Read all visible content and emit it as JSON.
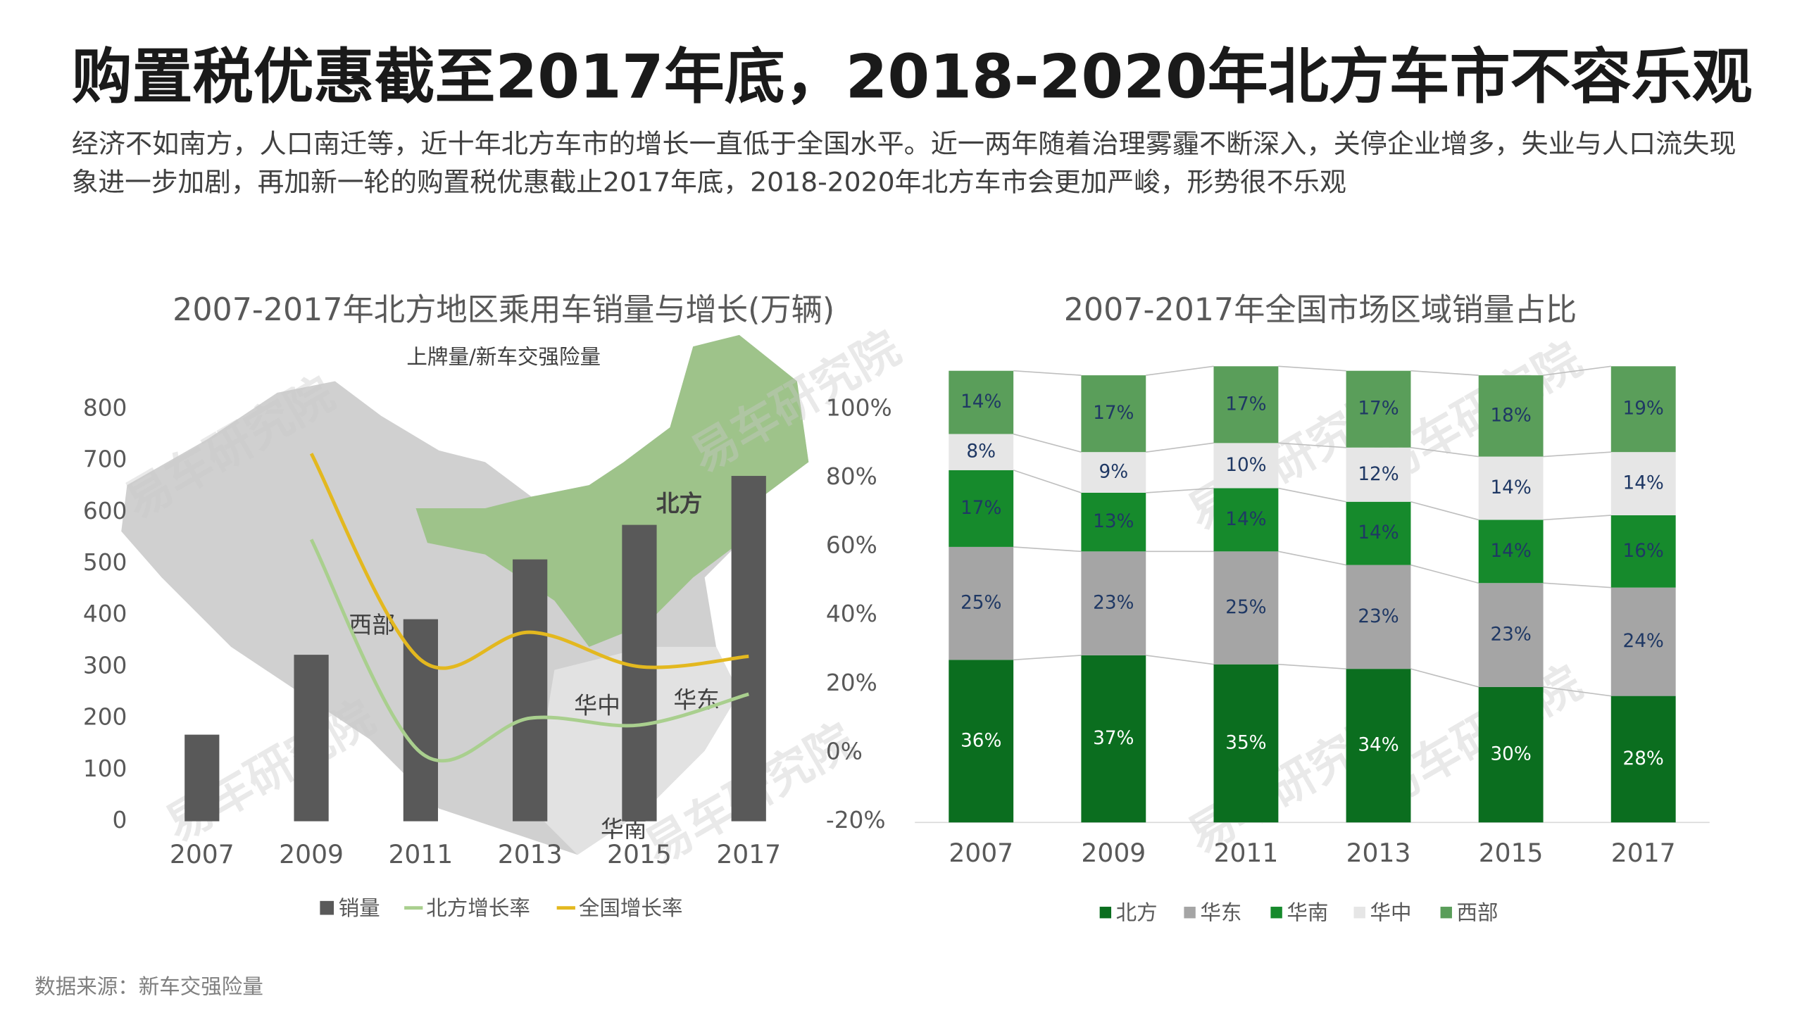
{
  "page": {
    "title": "购置税优惠截至2017年底，2018-2020年北方车市不容乐观",
    "subtitle": [
      "经济不如南方，人口南迁等，近十年北方车市的增长一直低于全国水平。近一两年随着治理雾霾不断深入，关停企业增多，失业与人口流失现",
      "象进一步加剧，再加新一轮的购置税优惠截止2017年底，2018-2020年北方车市会更加严峻，形势很不乐观"
    ],
    "source": "数据来源：新车交强险量",
    "watermark": "易车研究院"
  },
  "chart_data": [
    {
      "type": "combo",
      "title": "2007-2017年北方地区乘用车销量与增长(万辆)",
      "annotation": "上牌量/新车交强险量",
      "map_labels": [
        "北方",
        "西部",
        "华中",
        "华东",
        "华南"
      ],
      "categories": [
        "2007",
        "2009",
        "2011",
        "2013",
        "2015",
        "2017"
      ],
      "series": [
        {
          "name": "销量",
          "type": "bar",
          "color": "#595959",
          "values": [
            168,
            323,
            392,
            508,
            575,
            670
          ]
        },
        {
          "name": "北方增长率",
          "type": "line",
          "axis": "y2",
          "color": "#a9cf8e",
          "values": [
            null,
            62,
            0,
            10,
            8,
            17
          ]
        },
        {
          "name": "全国增长率",
          "type": "line",
          "axis": "y2",
          "color": "#e3b81f",
          "values": [
            null,
            87,
            27,
            35,
            25,
            28
          ]
        }
      ],
      "ylim": [
        0,
        800
      ],
      "yticks": [
        0,
        100,
        200,
        300,
        400,
        500,
        600,
        700,
        800
      ],
      "y2lim": [
        -20,
        100
      ],
      "y2ticks": [
        {
          "value": -20,
          "label": "-20%"
        },
        {
          "value": 0,
          "label": "0%"
        },
        {
          "value": 20,
          "label": "20%"
        },
        {
          "value": 40,
          "label": "40%"
        },
        {
          "value": 60,
          "label": "60%"
        },
        {
          "value": 80,
          "label": "80%"
        },
        {
          "value": 100,
          "label": "100%"
        }
      ]
    },
    {
      "type": "stacked_bar",
      "title": "2007-2017年全国市场区域销量占比",
      "categories": [
        "2007",
        "2009",
        "2011",
        "2013",
        "2015",
        "2017"
      ],
      "ylim": [
        0,
        100
      ],
      "series": [
        {
          "name": "北方",
          "color": "#0b6e1f",
          "label_color": "#ffffff",
          "values": [
            36,
            37,
            35,
            34,
            30,
            28
          ],
          "value_labels": [
            "36%",
            "37%",
            "35%",
            "34%",
            "30%",
            "28%"
          ]
        },
        {
          "name": "华东",
          "color": "#a5a5a5",
          "label_color": "#1f3864",
          "values": [
            25,
            23,
            25,
            23,
            23,
            24
          ],
          "value_labels": [
            "25%",
            "23%",
            "25%",
            "23%",
            "23%",
            "24%"
          ]
        },
        {
          "name": "华南",
          "color": "#168a2c",
          "label_color": "#1f3864",
          "values": [
            17,
            13,
            14,
            14,
            14,
            16
          ],
          "value_labels": [
            "17%",
            "13%",
            "14%",
            "14%",
            "14%",
            "16%"
          ]
        },
        {
          "name": "华中",
          "color": "#e6e6e6",
          "label_color": "#1f3864",
          "values": [
            8,
            9,
            10,
            12,
            14,
            14
          ],
          "value_labels": [
            "8%",
            "9%",
            "10%",
            "12%",
            "14%",
            "14%"
          ]
        },
        {
          "name": "西部",
          "color": "#5a9e5a",
          "label_color": "#1f3864",
          "values": [
            14,
            17,
            17,
            17,
            18,
            19
          ],
          "value_labels": [
            "14%",
            "17%",
            "17%",
            "17%",
            "18%",
            "19%"
          ]
        }
      ]
    }
  ]
}
